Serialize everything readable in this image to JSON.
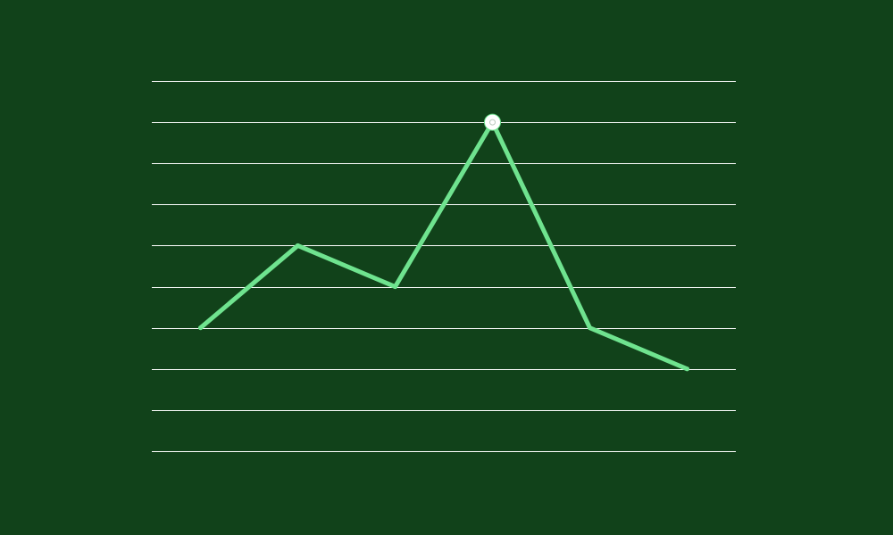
{
  "colors": {
    "background": "#11421a",
    "gridline": "#ffffff",
    "series_line": "#6fe38f",
    "highlight_marker_fill": "#ffffff"
  },
  "chart_data": {
    "type": "line",
    "title": "",
    "xlabel": "",
    "ylabel": "",
    "x": [
      1,
      2,
      3,
      4,
      5,
      6
    ],
    "series": [
      {
        "values": [
          3,
          5,
          4,
          8,
          3,
          2
        ]
      }
    ],
    "ylim": [
      0,
      9
    ],
    "xlim": [
      0.5,
      6.5
    ],
    "gridlines": {
      "horizontal": true,
      "vertical": false,
      "y_values": [
        0,
        1,
        2,
        3,
        4,
        5,
        6,
        7,
        8,
        9
      ]
    },
    "highlight_point_index": 3,
    "axes_visible": false,
    "tick_labels_visible": false,
    "legend": "none"
  }
}
